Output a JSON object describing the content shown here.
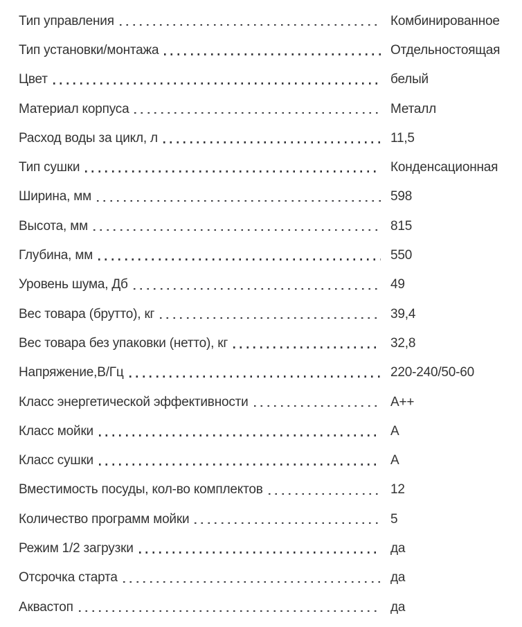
{
  "page": {
    "background_color": "#ffffff",
    "text_color": "#333333",
    "dot_leader_color": "#3a3a3e"
  },
  "specs": {
    "rows": [
      {
        "label": "Тип управления",
        "value": "Комбинированное"
      },
      {
        "label": "Тип установки/монтажа",
        "value": "Отдельностоящая"
      },
      {
        "label": "Цвет",
        "value": "белый"
      },
      {
        "label": "Материал корпуса",
        "value": "Металл"
      },
      {
        "label": "Расход воды за цикл, л",
        "value": "11,5"
      },
      {
        "label": "Тип сушки",
        "value": "Конденсационная"
      },
      {
        "label": "Ширина, мм",
        "value": "598"
      },
      {
        "label": "Высота, мм",
        "value": "815"
      },
      {
        "label": "Глубина, мм",
        "value": "550"
      },
      {
        "label": "Уровень шума, Дб",
        "value": "49"
      },
      {
        "label": "Вес товара (брутто), кг",
        "value": "39,4"
      },
      {
        "label": "Вес товара без упаковки (нетто), кг",
        "value": "32,8"
      },
      {
        "label": "Напряжение,В/Гц",
        "value": "220-240/50-60"
      },
      {
        "label": "Класс энергетической эффективности",
        "value": "А++"
      },
      {
        "label": "Класс мойки",
        "value": "А"
      },
      {
        "label": "Класс сушки",
        "value": "А"
      },
      {
        "label": "Вместимость посуды, кол-во комплектов",
        "value": "12"
      },
      {
        "label": "Количество программ мойки",
        "value": "5"
      },
      {
        "label": "Режим 1/2 загрузки",
        "value": "да"
      },
      {
        "label": "Отсрочка старта",
        "value": "да"
      },
      {
        "label": "Аквастоп",
        "value": "да"
      }
    ]
  }
}
